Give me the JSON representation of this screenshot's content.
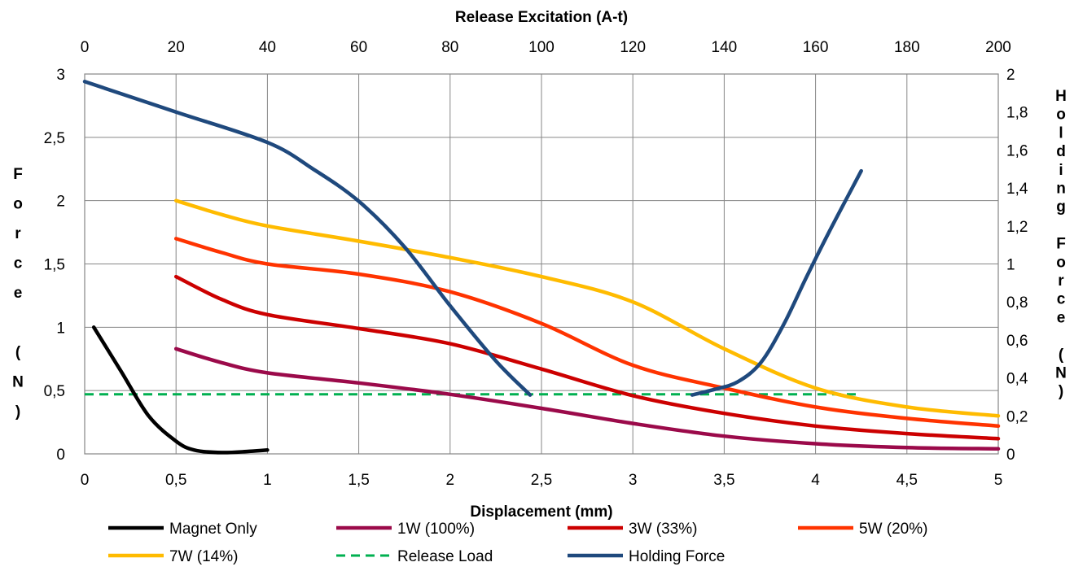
{
  "chart_data": {
    "type": "line",
    "title": "",
    "xlabel": "Displacement (mm)",
    "x2label": "Release Excitation (A-t)",
    "ylabel": "Force (N)",
    "y2label": "Holding Force (N)",
    "xlim": [
      0,
      5
    ],
    "x2lim": [
      0,
      200
    ],
    "ylim": [
      0,
      3
    ],
    "y2lim": [
      0,
      2
    ],
    "x_ticks": [
      "0",
      "0,5",
      "1",
      "1,5",
      "2",
      "2,5",
      "3",
      "3,5",
      "4",
      "4,5",
      "5"
    ],
    "x2_ticks": [
      "0",
      "20",
      "40",
      "60",
      "80",
      "100",
      "120",
      "140",
      "160",
      "180",
      "200"
    ],
    "y_ticks": [
      "0",
      "0,5",
      "1",
      "1,5",
      "2",
      "2,5",
      "3"
    ],
    "y2_ticks": [
      "0",
      "0,2",
      "0,4",
      "0,6",
      "0,8",
      "1",
      "1,2",
      "1,4",
      "1,6",
      "1,8",
      "2"
    ],
    "grid": true,
    "legend_position": "bottom",
    "series": [
      {
        "name": "Magnet Only",
        "color": "#000000",
        "axis": "primary",
        "x": [
          0.05,
          0.2,
          0.35,
          0.5,
          0.6,
          0.75,
          0.9,
          1.0
        ],
        "y": [
          1.0,
          0.65,
          0.3,
          0.1,
          0.03,
          0.01,
          0.02,
          0.03
        ]
      },
      {
        "name": "1W (100%)",
        "color": "#9b0a4a",
        "axis": "primary",
        "x": [
          0.5,
          0.75,
          1.0,
          1.5,
          2.0,
          2.5,
          3.0,
          3.5,
          4.0,
          4.5,
          5.0
        ],
        "y": [
          0.83,
          0.72,
          0.64,
          0.56,
          0.47,
          0.36,
          0.24,
          0.14,
          0.08,
          0.05,
          0.04
        ]
      },
      {
        "name": "3W (33%)",
        "color": "#cc0000",
        "axis": "primary",
        "x": [
          0.5,
          0.75,
          1.0,
          1.5,
          2.0,
          2.5,
          3.0,
          3.5,
          4.0,
          4.5,
          5.0
        ],
        "y": [
          1.4,
          1.22,
          1.1,
          0.99,
          0.87,
          0.67,
          0.46,
          0.32,
          0.22,
          0.16,
          0.12
        ]
      },
      {
        "name": "5W (20%)",
        "color": "#ff3300",
        "axis": "primary",
        "x": [
          0.5,
          0.75,
          1.0,
          1.5,
          2.0,
          2.5,
          3.0,
          3.5,
          4.0,
          4.5,
          5.0
        ],
        "y": [
          1.7,
          1.59,
          1.5,
          1.42,
          1.28,
          1.03,
          0.7,
          0.52,
          0.37,
          0.28,
          0.22
        ]
      },
      {
        "name": "7W (14%)",
        "color": "#ffbb00",
        "axis": "primary",
        "x": [
          0.5,
          0.75,
          1.0,
          1.5,
          2.0,
          2.5,
          3.0,
          3.5,
          4.0,
          4.5,
          5.0
        ],
        "y": [
          2.0,
          1.89,
          1.8,
          1.68,
          1.55,
          1.4,
          1.2,
          0.83,
          0.52,
          0.37,
          0.3
        ]
      },
      {
        "name": "Release Load",
        "color": "#00b050",
        "axis": "primary",
        "dashed": true,
        "x": [
          0,
          4.25
        ],
        "y": [
          0.47,
          0.47
        ]
      },
      {
        "name": "Holding Force",
        "color": "#1f497d",
        "axis": "secondary",
        "x": [
          0,
          20,
          40,
          50,
          60,
          70,
          80,
          90,
          97.5
        ],
        "y": [
          1.96,
          1.8,
          1.64,
          1.5,
          1.33,
          1.09,
          0.78,
          0.49,
          0.31
        ]
      },
      {
        "name": "Holding Force",
        "color": "#1f497d",
        "axis": "secondary",
        "x": [
          133,
          138,
          143,
          148,
          153,
          158,
          163,
          170
        ],
        "y": [
          0.31,
          0.34,
          0.38,
          0.48,
          0.68,
          0.93,
          1.17,
          1.49
        ]
      }
    ]
  }
}
